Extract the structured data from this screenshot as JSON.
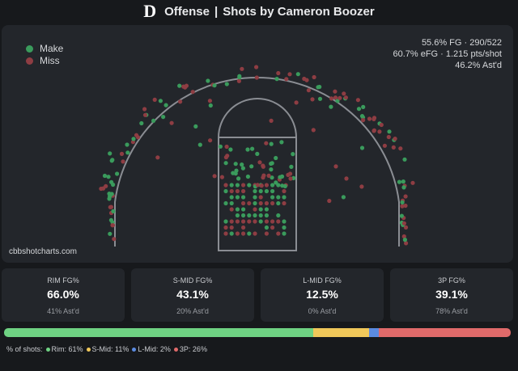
{
  "header": {
    "logo": "D",
    "section": "Offense",
    "separator": "|",
    "title": "Shots by Cameron Boozer"
  },
  "legend": [
    {
      "label": "Make",
      "color": "#3a9b5c"
    },
    {
      "label": "Miss",
      "color": "#8e3d43"
    }
  ],
  "summary": [
    "55.6% FG · 290/522",
    "60.7% eFG · 1.215 pts/shot",
    "46.2% Ast'd"
  ],
  "watermark": "cbbshotcharts.com",
  "cards": [
    {
      "label": "RIM FG%",
      "value": "66.0%",
      "sub": "41% Ast'd"
    },
    {
      "label": "S-MID FG%",
      "value": "43.1%",
      "sub": "20% Ast'd"
    },
    {
      "label": "L-MID FG%",
      "value": "12.5%",
      "sub": "0% Ast'd"
    },
    {
      "label": "3P FG%",
      "value": "39.1%",
      "sub": "78% Ast'd"
    }
  ],
  "shot_distribution": {
    "title": "% of shots:",
    "segments": [
      {
        "label": "Rim: 61%",
        "value": 61,
        "color": "#6fd283"
      },
      {
        "label": "S-Mid: 11%",
        "value": 11,
        "color": "#f0c85a"
      },
      {
        "label": "L-Mid: 2%",
        "value": 2,
        "color": "#5b8be0"
      },
      {
        "label": "3P: 26%",
        "value": 26,
        "color": "#e06a6a"
      }
    ]
  }
}
